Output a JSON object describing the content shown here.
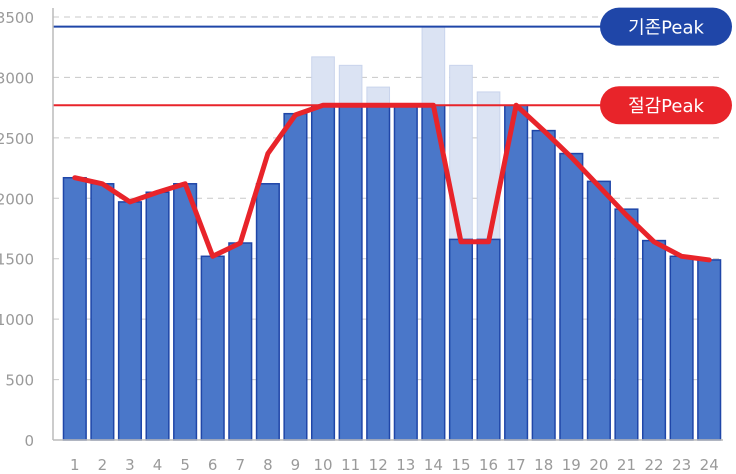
{
  "chart_data": {
    "type": "bar",
    "categories": [
      "1",
      "2",
      "3",
      "4",
      "5",
      "6",
      "7",
      "8",
      "9",
      "10",
      "11",
      "12",
      "13",
      "14",
      "15",
      "16",
      "17",
      "18",
      "19",
      "20",
      "21",
      "22",
      "23",
      "24"
    ],
    "series": [
      {
        "values": [
          2170,
          2120,
          1970,
          2050,
          2120,
          1520,
          1630,
          2120,
          2700,
          3170,
          3100,
          2920,
          2770,
          3420,
          3100,
          2880,
          2770,
          2560,
          2370,
          2140,
          1910,
          1650,
          1520,
          1490
        ]
      },
      {
        "values": [
          2170,
          2120,
          1970,
          2050,
          2120,
          1520,
          1630,
          2120,
          2700,
          2770,
          2770,
          2770,
          2770,
          2770,
          1660,
          1660,
          2770,
          2560,
          2370,
          2140,
          1910,
          1650,
          1520,
          1490
        ]
      },
      {
        "values": [
          2170,
          2120,
          1970,
          2050,
          2120,
          1520,
          1630,
          2370,
          2690,
          2770,
          2770,
          2770,
          2770,
          2770,
          1640,
          1640,
          2770,
          2560,
          2340,
          2100,
          1860,
          1640,
          1520,
          1490
        ]
      }
    ],
    "yticks": [
      "0",
      "500",
      "1000",
      "1500",
      "2000",
      "2500",
      "3000",
      "3500"
    ],
    "ylim": [
      0,
      3500
    ],
    "grid": true,
    "reference_lines": [
      {
        "label": "기존Peak",
        "value": 3420,
        "color": "#1f46a8"
      },
      {
        "label": "절감Peak",
        "value": 2770,
        "color": "#e8242a"
      }
    ],
    "colors": {
      "original_bar": "#dbe3f3",
      "reduced_bar": "#4a77c9",
      "reduced_bar_border": "#1f46a8",
      "line": "#e8242a",
      "grid": "#c8c8c8",
      "axis": "#bbbbbb",
      "tick_text": "#9a9a9a"
    }
  }
}
